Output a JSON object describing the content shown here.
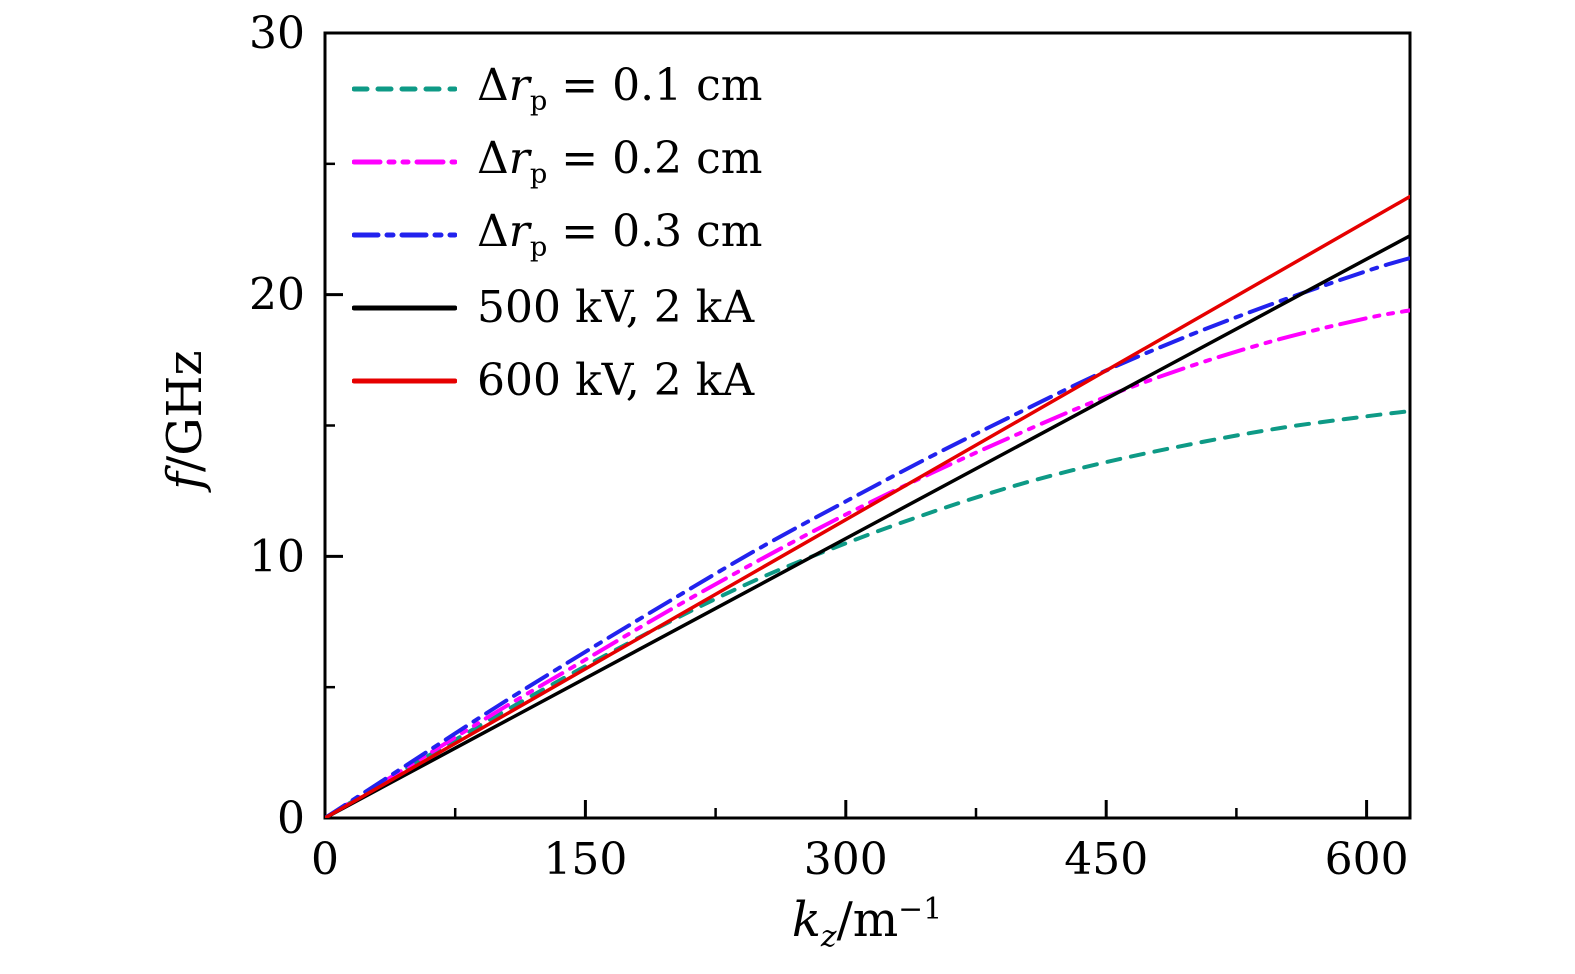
{
  "figure": {
    "background": "#ffffff",
    "axis_color": "#000000"
  },
  "chart_data": {
    "type": "line",
    "title": "",
    "grid": false,
    "legend_position": "top-left",
    "x_axis": {
      "label_segments": [
        {
          "t": "k",
          "s": "i"
        },
        {
          "t": "z",
          "s": "subi"
        },
        {
          "t": "/m",
          "s": "n"
        },
        {
          "t": "−1",
          "s": "sup"
        }
      ],
      "range": [
        0,
        625
      ],
      "ticks": [
        0,
        150,
        300,
        450,
        600
      ],
      "tick_labels": [
        "0",
        "150",
        "300",
        "450",
        "600"
      ],
      "minor_ticks": [
        75,
        225,
        375,
        525
      ]
    },
    "y_axis": {
      "label_segments": [
        {
          "t": "f",
          "s": "i"
        },
        {
          "t": "/GHz",
          "s": "n"
        }
      ],
      "range": [
        0,
        30
      ],
      "ticks": [
        0,
        10,
        20,
        30
      ],
      "tick_labels": [
        "0",
        "10",
        "20",
        "30"
      ],
      "minor_ticks": [
        5,
        15,
        25
      ]
    },
    "series": [
      {
        "name": "drp-0.1cm",
        "label_segments": [
          {
            "t": "Δ",
            "s": "n"
          },
          {
            "t": "r",
            "s": "i"
          },
          {
            "t": "p",
            "s": "sub"
          },
          {
            "t": " = 0.1 cm",
            "s": "n"
          }
        ],
        "color": "#0e9a86",
        "dash": "13 11",
        "width": 4,
        "x": [
          0,
          50,
          100,
          150,
          200,
          250,
          300,
          350,
          400,
          450,
          500,
          550,
          600,
          625
        ],
        "y": [
          0,
          2.0,
          3.95,
          5.8,
          7.55,
          9.15,
          10.5,
          11.7,
          12.75,
          13.6,
          14.3,
          14.9,
          15.35,
          15.55
        ]
      },
      {
        "name": "drp-0.2cm",
        "label_segments": [
          {
            "t": "Δ",
            "s": "n"
          },
          {
            "t": "r",
            "s": "i"
          },
          {
            "t": "p",
            "s": "sub"
          },
          {
            "t": " = 0.2 cm",
            "s": "n"
          }
        ],
        "color": "#ff00ff",
        "dash": "26 9 5 9 5 9",
        "width": 4,
        "x": [
          0,
          50,
          100,
          150,
          200,
          250,
          300,
          350,
          400,
          450,
          500,
          550,
          600,
          625
        ],
        "y": [
          0,
          2.05,
          4.1,
          6.05,
          8.0,
          9.85,
          11.6,
          13.2,
          14.7,
          16.1,
          17.3,
          18.3,
          19.1,
          19.4
        ]
      },
      {
        "name": "drp-0.3cm",
        "label_segments": [
          {
            "t": "Δ",
            "s": "n"
          },
          {
            "t": "r",
            "s": "i"
          },
          {
            "t": "p",
            "s": "sub"
          },
          {
            "t": " = 0.3 cm",
            "s": "n"
          }
        ],
        "color": "#2222ee",
        "dash": "24 9 6 9",
        "width": 4,
        "x": [
          0,
          50,
          100,
          150,
          200,
          250,
          300,
          350,
          400,
          450,
          500,
          550,
          600,
          625
        ],
        "y": [
          0,
          2.15,
          4.3,
          6.35,
          8.35,
          10.3,
          12.1,
          13.85,
          15.5,
          17.1,
          18.5,
          19.75,
          20.9,
          21.4
        ]
      },
      {
        "name": "beam-500kV-2kA",
        "label_segments": [
          {
            "t": "500 kV, 2 kA",
            "s": "n"
          }
        ],
        "color": "#000000",
        "dash": "",
        "width": 3.5,
        "x": [
          0,
          625
        ],
        "y": [
          0,
          22.25
        ]
      },
      {
        "name": "beam-600kV-2kA",
        "label_segments": [
          {
            "t": "600 kV, 2 kA",
            "s": "n"
          }
        ],
        "color": "#e60000",
        "dash": "",
        "width": 3.5,
        "x": [
          0,
          625
        ],
        "y": [
          0,
          23.75
        ]
      }
    ]
  }
}
